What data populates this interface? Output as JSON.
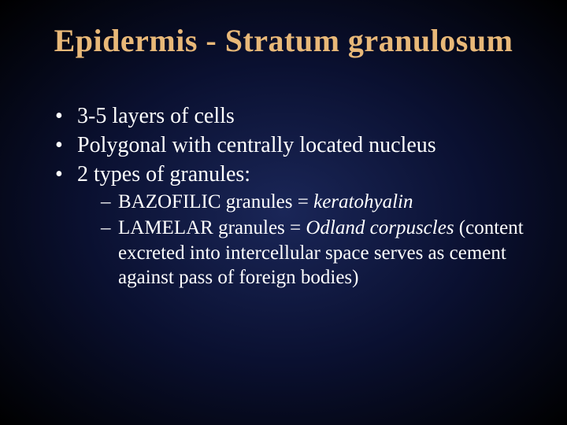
{
  "slide": {
    "title": "Epidermis - Stratum granulosum",
    "title_color": "#e8b878",
    "text_color": "#ffffff",
    "background_gradient": [
      "#1a2658",
      "#0a1030",
      "#000000"
    ],
    "title_fontsize": 40,
    "body_fontsize": 28,
    "sub_fontsize": 25,
    "font_family": "Times New Roman",
    "bullets": [
      {
        "text": "3-5 layers of cells"
      },
      {
        "text": "Polygonal with centrally located nucleus"
      },
      {
        "text": "2 types of granules:"
      }
    ],
    "sub_bullets": [
      {
        "prefix": "BAZOFILIC granules = ",
        "italic": "keratohyalin",
        "suffix": ""
      },
      {
        "prefix": "LAMELAR granules = ",
        "italic": "Odland corpuscles",
        "suffix": " (content excreted into intercellular space serves as cement against pass of foreign bodies)"
      }
    ]
  }
}
